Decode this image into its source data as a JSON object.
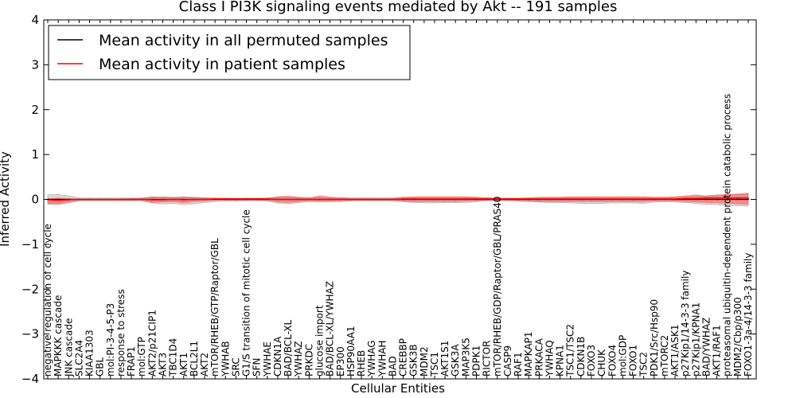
{
  "chart_data": {
    "type": "line",
    "title": "Class I PI3K signaling events mediated by Akt -- 191 samples",
    "xlabel": "Cellular Entities",
    "ylabel": "Inferred Activity",
    "ylim": [
      -4,
      4
    ],
    "yticks": [
      -4,
      -3,
      -2,
      -1,
      0,
      1,
      2,
      3,
      4
    ],
    "ytick_labels": [
      "−4",
      "−3",
      "−2",
      "−1",
      "0",
      "1",
      "2",
      "3",
      "4"
    ],
    "legend": {
      "position": "top-left",
      "entries": [
        {
          "label": "Mean activity in all permuted samples",
          "color": "#000000"
        },
        {
          "label": "Mean activity in patient samples",
          "color": "#ff0000"
        }
      ]
    },
    "categories": [
      "negative regulation of cell cycle",
      "MAPKKK cascade",
      "JNK cascade",
      "SLC2A4",
      "KIAA1303",
      "GBL",
      "mol:PI-3-4-5-P3",
      "response to stress",
      "FRAP1",
      "mol:GTP",
      "AKT2/p21CIP1",
      "AKT3",
      "TBC1D4",
      "AKT1",
      "BCL2L1",
      "AKT2",
      "mTOR/RHEB/GTP/Raptor/GBL",
      "YWHAB",
      "SRC",
      "G1/S transition of mitotic cell cycle",
      "SFN",
      "YWHAE",
      "CDKN1A",
      "BAD/BCL-XL",
      "YWHAZ",
      "PRKDC",
      "glucose import",
      "BAD/BCL-XL/YWHAZ",
      "EP300",
      "HSP90AA1",
      "RHEB",
      "YWHAG",
      "YWHAH",
      "BAD",
      "CREBBP",
      "GSK3B",
      "MDM2",
      "TSC1",
      "AKT1S1",
      "GSK3A",
      "MAP3K5",
      "PDPK1",
      "RICTOR",
      "mTOR/RHEB/GDP/Raptor/GBL/PRAS40",
      "CASP9",
      "RAF1",
      "MAPKAP1",
      "PRKACA",
      "YWHAQ",
      "KPNA1",
      "TSC1/TSC2",
      "CDKN1B",
      "FOXO3",
      "CHUK",
      "FOXO4",
      "mol:GDP",
      "FOXO1",
      "TSC2",
      "PDK1/Src/Hsp90",
      "mTORC2",
      "AKT1/ASK1",
      "p27Kip1/14-3-3 family",
      "p27Kip1/KPNA1",
      "BAD/YWHAZ",
      "AKT1/RAF1",
      "proteasomal ubiquitin-dependent protein catabolic process",
      "MDM2/Cbp/p300",
      "FOXO1-3a-4/14-3-3 family"
    ],
    "series": [
      {
        "name": "Mean activity in all permuted samples",
        "color": "#000000",
        "values": [
          0,
          0,
          0,
          0,
          0,
          0,
          0,
          0,
          0,
          0,
          0,
          0,
          0,
          0,
          0,
          0,
          0,
          0,
          0,
          0,
          0,
          0,
          0,
          0,
          0,
          0,
          0,
          0,
          0,
          0,
          0,
          0,
          0,
          0,
          0,
          0,
          0,
          0,
          0,
          0,
          0,
          0,
          0,
          0,
          0,
          0,
          0,
          0,
          0,
          0,
          0,
          0,
          0,
          0,
          0,
          0,
          0,
          0,
          0,
          0,
          0,
          0,
          0,
          0,
          0,
          0,
          0,
          0
        ],
        "band_upper": [
          0.1,
          0.11,
          0.08,
          0.03,
          0.03,
          0.03,
          0.03,
          0.03,
          0.03,
          0.03,
          0.04,
          0.06,
          0.05,
          0.06,
          0.05,
          0.04,
          0.03,
          0.03,
          0.03,
          0.03,
          0.03,
          0.03,
          0.05,
          0.06,
          0.05,
          0.04,
          0.04,
          0.04,
          0.04,
          0.03,
          0.03,
          0.03,
          0.03,
          0.03,
          0.04,
          0.05,
          0.05,
          0.05,
          0.05,
          0.05,
          0.05,
          0.04,
          0.03,
          0.03,
          0.03,
          0.03,
          0.04,
          0.05,
          0.05,
          0.05,
          0.05,
          0.06,
          0.06,
          0.06,
          0.05,
          0.05,
          0.05,
          0.05,
          0.04,
          0.04,
          0.05,
          0.05,
          0.06,
          0.07,
          0.08,
          0.1,
          0.11,
          0.12
        ],
        "band_lower": [
          -0.11,
          -0.12,
          -0.08,
          -0.03,
          -0.03,
          -0.03,
          -0.03,
          -0.03,
          -0.03,
          -0.03,
          -0.08,
          -0.1,
          -0.09,
          -0.12,
          -0.1,
          -0.07,
          -0.05,
          -0.04,
          -0.04,
          -0.03,
          -0.03,
          -0.04,
          -0.08,
          -0.1,
          -0.07,
          -0.05,
          -0.05,
          -0.05,
          -0.05,
          -0.04,
          -0.03,
          -0.03,
          -0.03,
          -0.03,
          -0.05,
          -0.07,
          -0.08,
          -0.08,
          -0.07,
          -0.07,
          -0.07,
          -0.05,
          -0.03,
          -0.03,
          -0.03,
          -0.04,
          -0.05,
          -0.06,
          -0.07,
          -0.07,
          -0.08,
          -0.09,
          -0.09,
          -0.09,
          -0.08,
          -0.08,
          -0.08,
          -0.09,
          -0.06,
          -0.05,
          -0.06,
          -0.07,
          -0.09,
          -0.11,
          -0.12,
          -0.13,
          -0.14,
          -0.15
        ]
      },
      {
        "name": "Mean activity in patient samples",
        "color": "#ff0000",
        "values": [
          -0.01,
          -0.02,
          -0.01,
          0,
          0,
          0,
          0,
          0,
          0,
          0,
          -0.01,
          -0.01,
          0,
          -0.01,
          0,
          0,
          0.01,
          0.01,
          0.01,
          0.01,
          0.01,
          0.01,
          0,
          0,
          0,
          0,
          0,
          0,
          0,
          0,
          0,
          0,
          0,
          0,
          0.01,
          0.01,
          0.01,
          0.01,
          0.01,
          0.01,
          0.01,
          0.01,
          0.01,
          0.01,
          0.01,
          0.01,
          0.01,
          0.01,
          0.01,
          0.01,
          0.01,
          0.01,
          0.01,
          0.01,
          0.01,
          0.01,
          0.01,
          0.01,
          0.01,
          0.01,
          0.01,
          0.02,
          0.02,
          0.03,
          0.03,
          0.03,
          0.03,
          0.03
        ],
        "band_upper": [
          0.02,
          0.03,
          0.02,
          0.01,
          0.01,
          0.01,
          0.01,
          0.01,
          0.02,
          0.03,
          0.06,
          0.05,
          0.04,
          0.06,
          0.04,
          0.03,
          0.03,
          0.03,
          0.02,
          0.02,
          0.03,
          0.03,
          0.06,
          0.07,
          0.05,
          0.03,
          0.08,
          0.05,
          0.04,
          0.03,
          0.03,
          0.03,
          0.03,
          0.03,
          0.05,
          0.06,
          0.06,
          0.06,
          0.06,
          0.06,
          0.06,
          0.05,
          0.04,
          0.03,
          0.03,
          0.03,
          0.03,
          0.04,
          0.05,
          0.05,
          0.06,
          0.06,
          0.06,
          0.06,
          0.06,
          0.06,
          0.06,
          0.06,
          0.05,
          0.05,
          0.06,
          0.08,
          0.1,
          0.08,
          0.1,
          0.11,
          0.12,
          0.14
        ],
        "band_lower": [
          -0.09,
          -0.1,
          -0.06,
          -0.02,
          -0.02,
          -0.02,
          -0.02,
          -0.02,
          -0.02,
          -0.02,
          -0.07,
          -0.06,
          -0.05,
          -0.08,
          -0.05,
          -0.04,
          -0.02,
          -0.02,
          -0.02,
          -0.02,
          -0.02,
          -0.02,
          -0.06,
          -0.07,
          -0.05,
          -0.03,
          -0.05,
          -0.04,
          -0.03,
          -0.02,
          -0.02,
          -0.02,
          -0.02,
          -0.02,
          -0.04,
          -0.05,
          -0.05,
          -0.05,
          -0.05,
          -0.05,
          -0.04,
          -0.03,
          -0.02,
          -0.02,
          -0.02,
          -0.03,
          -0.04,
          -0.05,
          -0.05,
          -0.05,
          -0.05,
          -0.05,
          -0.05,
          -0.05,
          -0.05,
          -0.05,
          -0.05,
          -0.05,
          -0.04,
          -0.03,
          -0.04,
          -0.05,
          -0.06,
          -0.07,
          -0.08,
          -0.09,
          -0.1,
          -0.11
        ]
      }
    ]
  }
}
